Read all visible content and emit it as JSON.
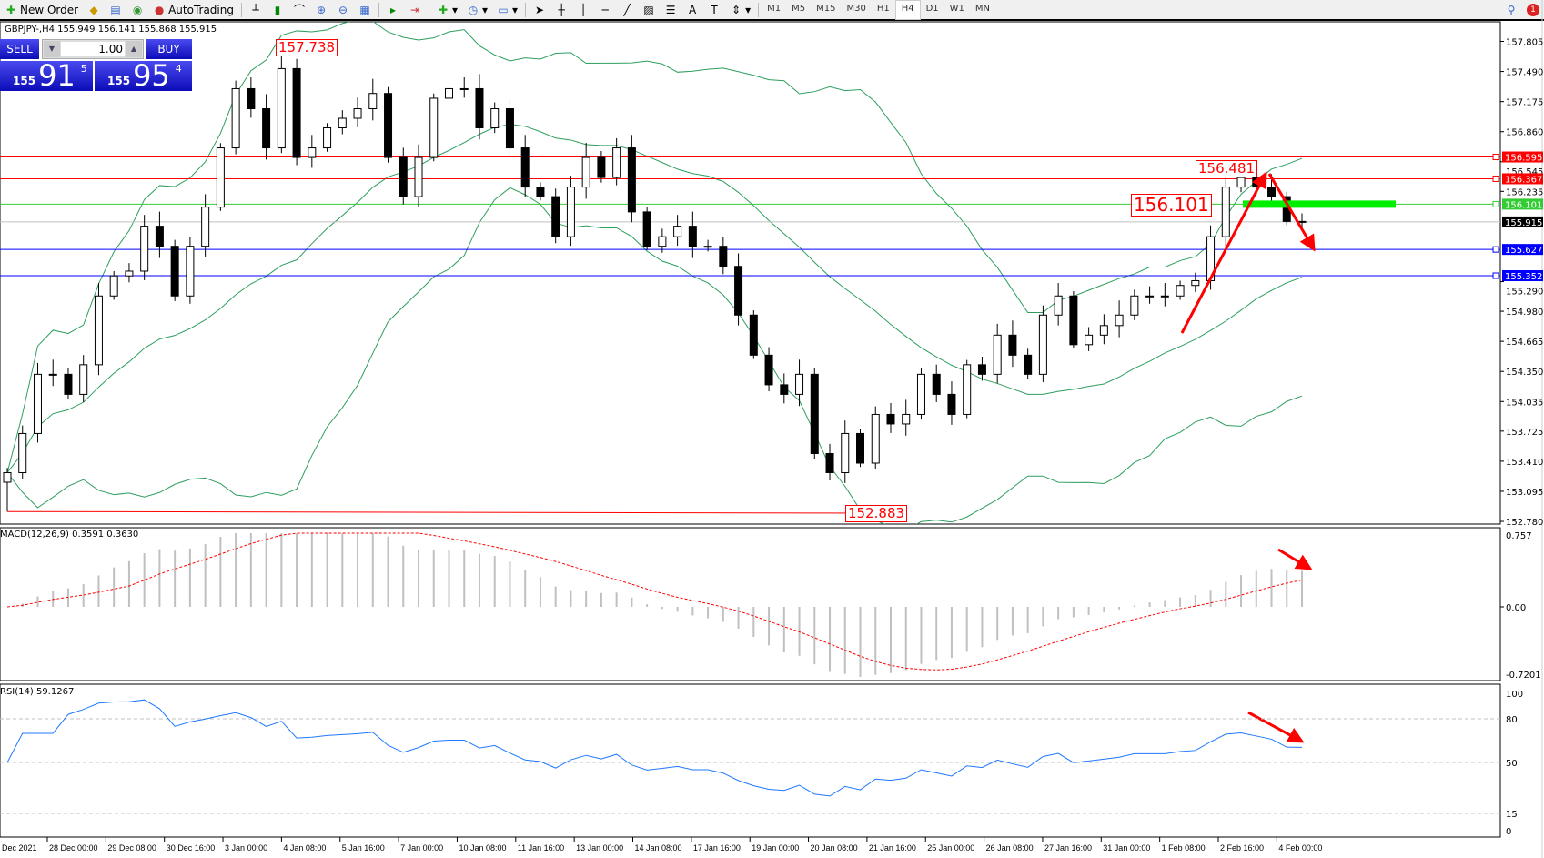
{
  "toolbar": {
    "new_order": "New Order",
    "autotrading": "AutoTrading",
    "timeframes": [
      "M1",
      "M5",
      "M15",
      "M30",
      "H1",
      "H4",
      "D1",
      "W1",
      "MN"
    ],
    "active_timeframe": "H4"
  },
  "chart_info": "GBPJPY-,H4  155.949 156.141 155.868 155.915",
  "trade_panel": {
    "sell_label": "SELL",
    "buy_label": "BUY",
    "lot": "1.00",
    "sell_price": {
      "prefix": "155",
      "big": "91",
      "sup": "5"
    },
    "buy_price": {
      "prefix": "155",
      "big": "95",
      "sup": "4"
    }
  },
  "annotations": {
    "high_label": "157.738",
    "low_label": "152.883",
    "recent_high_label": "156.481",
    "level_label": "156.101"
  },
  "levels": [
    {
      "price": 156.595,
      "label": "156.595",
      "color": "#ff0000"
    },
    {
      "price": 156.367,
      "label": "156.367",
      "color": "#ff0000"
    },
    {
      "price": 156.101,
      "label": "156.101",
      "color": "#33cc33"
    },
    {
      "price": 155.915,
      "label": "155.915",
      "color": "#000000",
      "line": "#c0c0c0"
    },
    {
      "price": 155.627,
      "label": "155.627",
      "color": "#0000ff"
    },
    {
      "price": 155.352,
      "label": "155.352",
      "color": "#0000ff"
    }
  ],
  "colors": {
    "bands": "#2e9e5e",
    "macd_signal": "#ff0000",
    "macd_hist": "#c0c0c0",
    "rsi": "#1e78ff",
    "arrow": "#ff0000",
    "support_bar": "#00ee00"
  },
  "macd": {
    "label": "MACD(12,26,9) 0.3591 0.3630",
    "ticks": [
      "0.757",
      "0.00",
      "-0.7201"
    ]
  },
  "rsi": {
    "label": "RSI(14) 59.1267",
    "ticks": [
      "100",
      "80",
      "50",
      "15",
      "0"
    ]
  },
  "chart_data": {
    "type": "candlestick",
    "symbol": "GBPJPY-",
    "timeframe": "H4",
    "ylim": [
      152.78,
      157.805
    ],
    "y_ticks": [
      "157.805",
      "157.490",
      "157.175",
      "156.860",
      "156.545",
      "156.235",
      "155.290",
      "154.980",
      "154.665",
      "154.350",
      "154.035",
      "153.725",
      "153.410",
      "153.095",
      "152.780"
    ],
    "x_ticks": [
      "Dec 2021",
      "28 Dec 00:00",
      "29 Dec 08:00",
      "30 Dec 16:00",
      "3 Jan 00:00",
      "4 Jan 08:00",
      "5 Jan 16:00",
      "7 Jan 00:00",
      "10 Jan 08:00",
      "11 Jan 16:00",
      "13 Jan 00:00",
      "14 Jan 08:00",
      "17 Jan 16:00",
      "19 Jan 00:00",
      "20 Jan 08:00",
      "21 Jan 16:00",
      "25 Jan 00:00",
      "26 Jan 08:00",
      "27 Jan 16:00",
      "31 Jan 00:00",
      "1 Feb 08:00",
      "2 Feb 16:00",
      "4 Feb 00:00"
    ],
    "high": 157.738,
    "low": 152.883,
    "closes": [
      153.29,
      153.7,
      154.32,
      154.32,
      154.11,
      154.42,
      155.14,
      155.35,
      155.4,
      155.87,
      155.66,
      155.14,
      155.66,
      156.07,
      156.69,
      157.31,
      157.1,
      156.69,
      157.52,
      156.59,
      156.69,
      156.9,
      157.0,
      157.1,
      157.26,
      156.59,
      156.18,
      156.59,
      157.21,
      157.31,
      157.31,
      156.9,
      157.1,
      156.69,
      156.28,
      156.18,
      155.76,
      156.28,
      156.59,
      156.38,
      156.69,
      156.02,
      155.66,
      155.76,
      155.87,
      155.66,
      155.66,
      155.45,
      154.94,
      154.52,
      154.21,
      154.11,
      154.32,
      153.49,
      153.29,
      153.7,
      153.39,
      153.9,
      153.8,
      153.9,
      154.32,
      154.11,
      153.9,
      154.42,
      154.32,
      154.73,
      154.52,
      154.32,
      154.94,
      155.14,
      154.63,
      154.73,
      154.83,
      154.94,
      155.14,
      155.14,
      155.14,
      155.25,
      155.3,
      155.76,
      156.28,
      156.38,
      156.28,
      156.18,
      155.92,
      155.915
    ],
    "indicators": [
      "Bollinger Bands(20,2)",
      "MACD(12,26,9)",
      "RSI(14)"
    ]
  }
}
